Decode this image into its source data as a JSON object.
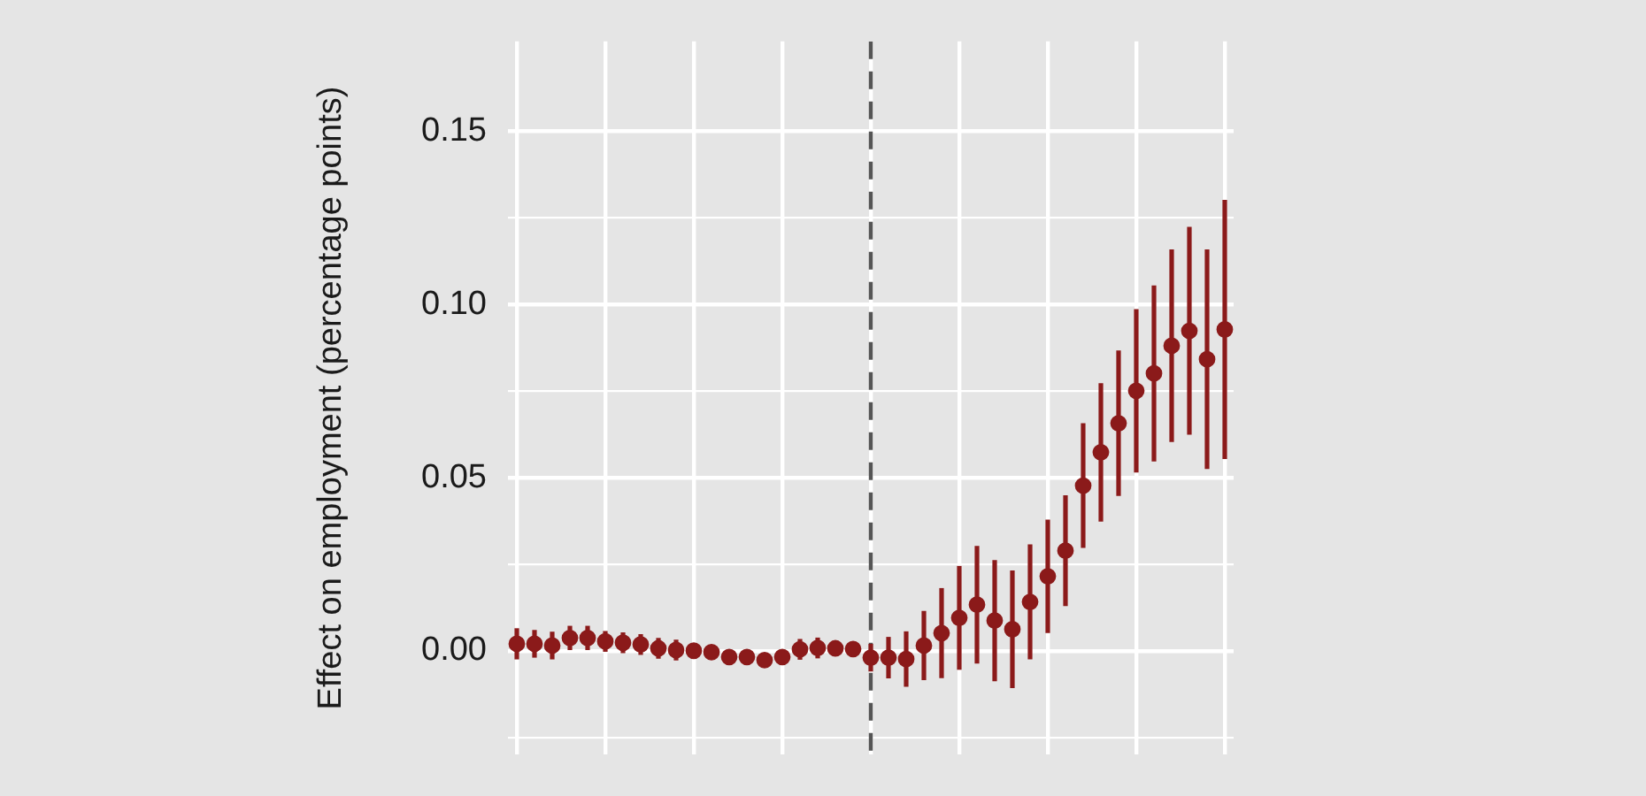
{
  "chart_data": {
    "type": "scatter",
    "ylabel": "Effect on employment (percentage points)",
    "categories": [
      null,
      null,
      null,
      null,
      null,
      null,
      null,
      null,
      null,
      null,
      null,
      null,
      null,
      null,
      null,
      null,
      null,
      null,
      null,
      null,
      null,
      null,
      null,
      null,
      null,
      null,
      null,
      null,
      null,
      null,
      null,
      null,
      null,
      null,
      null,
      null,
      null,
      null,
      null,
      null,
      null
    ],
    "series": [
      {
        "color": "#8b1a1a",
        "values": [
          0.002,
          0.002,
          0.0015,
          0.0037,
          0.0037,
          0.0027,
          0.0023,
          0.0018,
          0.0007,
          0.0002,
          0,
          -0.0004,
          -0.0018,
          -0.0018,
          -0.0027,
          -0.0018,
          0.0004,
          0.0008,
          0.0007,
          0.0005,
          -0.002,
          -0.002,
          -0.0024,
          0.0015,
          0.0051,
          0.0095,
          0.0133,
          0.0087,
          0.0062,
          0.0141,
          0.0215,
          0.0289,
          0.0477,
          0.0573,
          0.0657,
          0.0751,
          0.0801,
          0.0881,
          0.0924,
          0.0842,
          0.0928
        ],
        "errors": [
          0.0045,
          0.004,
          0.004,
          0.0035,
          0.0035,
          0.003,
          0.003,
          0.003,
          0.003,
          0.003,
          0.002,
          0.002,
          0.002,
          0.002,
          0.002,
          0.002,
          0.003,
          0.003,
          0.002,
          0.002,
          0.004,
          0.006,
          0.008,
          0.01,
          0.013,
          0.015,
          0.017,
          0.0175,
          0.017,
          0.0166,
          0.0164,
          0.016,
          0.018,
          0.02,
          0.021,
          0.0236,
          0.0254,
          0.0278,
          0.03,
          0.0317,
          0.0374
        ]
      }
    ],
    "ylim": [
      -0.03,
      0.176
    ],
    "yticks": [
      {
        "value": -0.025,
        "label": null
      },
      {
        "value": 0,
        "label": "0.00"
      },
      {
        "value": 0.025,
        "label": null
      },
      {
        "value": 0.05,
        "label": "0.05"
      },
      {
        "value": 0.075,
        "label": null
      },
      {
        "value": 0.1,
        "label": "0.10"
      },
      {
        "value": 0.125,
        "label": null
      },
      {
        "value": 0.15,
        "label": "0.15"
      }
    ],
    "tick_labels": "y",
    "grid": true,
    "marker": "circle"
  }
}
